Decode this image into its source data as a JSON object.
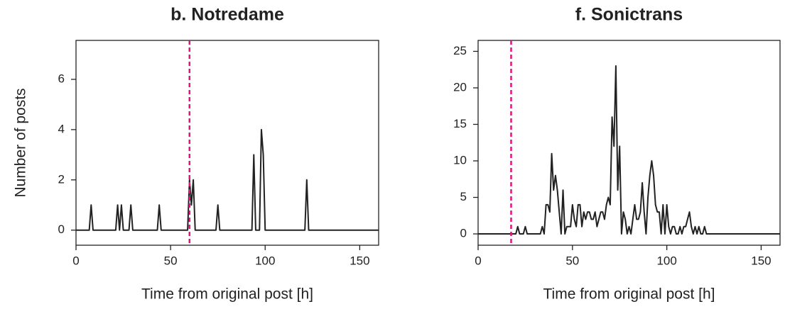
{
  "chart_data": [
    {
      "type": "line",
      "title": "b. Notredame",
      "x_label": "Time from original post [h]",
      "y_label": "Number of posts",
      "x": [
        0,
        7,
        8,
        9,
        21,
        22,
        23,
        24,
        25,
        28,
        29,
        30,
        43,
        44,
        45,
        59,
        60,
        61,
        62,
        63,
        74,
        75,
        76,
        93,
        94,
        95,
        97,
        98,
        99,
        100,
        121,
        122,
        123,
        160
      ],
      "series": [
        {
          "color": "#222222",
          "values": [
            0,
            0,
            1,
            0,
            0,
            1,
            0,
            1,
            0,
            0,
            1,
            0,
            0,
            1,
            0,
            0,
            2,
            1,
            2,
            0,
            0,
            1,
            0,
            0,
            3,
            0,
            0,
            4,
            3,
            0,
            0,
            2,
            0,
            0
          ]
        }
      ],
      "reference_x": 60,
      "reference_color": "#e0147f",
      "xlim": [
        0,
        160
      ],
      "ylim": [
        -0.6,
        7.55
      ],
      "xticks": [
        0,
        50,
        100,
        150
      ],
      "yticks": [
        0,
        2,
        4,
        6
      ]
    },
    {
      "type": "line",
      "title": "f. Sonictrans",
      "x_label": "Time from original post [h]",
      "x": [
        0,
        20,
        21,
        22,
        24,
        25,
        26,
        33,
        34,
        35,
        36,
        37,
        38,
        39,
        40,
        41,
        42,
        43,
        44,
        45,
        46,
        47,
        48,
        49,
        50,
        51,
        52,
        53,
        54,
        55,
        56,
        57,
        58,
        59,
        60,
        61,
        62,
        63,
        64,
        65,
        66,
        67,
        68,
        69,
        70,
        71,
        72,
        73,
        74,
        75,
        76,
        77,
        78,
        79,
        80,
        81,
        82,
        83,
        84,
        85,
        86,
        87,
        88,
        89,
        90,
        91,
        92,
        93,
        94,
        95,
        96,
        97,
        98,
        99,
        100,
        101,
        102,
        103,
        104,
        105,
        106,
        107,
        108,
        109,
        110,
        111,
        112,
        113,
        114,
        115,
        116,
        117,
        118,
        119,
        120,
        121,
        160
      ],
      "series": [
        {
          "color": "#222222",
          "values": [
            0,
            0,
            1,
            0,
            0,
            1,
            0,
            0,
            1,
            0,
            4,
            4,
            3,
            11,
            6,
            8,
            6,
            3,
            0,
            6,
            0,
            1,
            1,
            1,
            4,
            2,
            1,
            4,
            4,
            1,
            3,
            2,
            3,
            3,
            2,
            2,
            3,
            1,
            2,
            3,
            3,
            2,
            4,
            5,
            4,
            16,
            12,
            23,
            6,
            12,
            0,
            3,
            2,
            0,
            1,
            0,
            2,
            4,
            2,
            2,
            3,
            7,
            3,
            0,
            5,
            8,
            10,
            8,
            4,
            3,
            3,
            0,
            4,
            0,
            4,
            1,
            0,
            1,
            1,
            0,
            0,
            1,
            0,
            1,
            1,
            2,
            3,
            1,
            0,
            1,
            0,
            1,
            0,
            0,
            1,
            0,
            0
          ]
        }
      ],
      "reference_x": 17.5,
      "reference_color": "#e0147f",
      "xlim": [
        0,
        160
      ],
      "ylim": [
        -1.55,
        26.5
      ],
      "xticks": [
        0,
        50,
        100,
        150
      ],
      "yticks": [
        0,
        5,
        10,
        15,
        20,
        25
      ]
    }
  ]
}
